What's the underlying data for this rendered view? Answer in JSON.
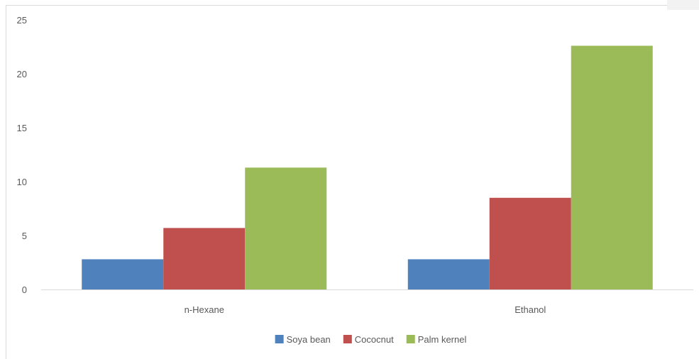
{
  "chart_data": {
    "type": "bar",
    "title": "",
    "xlabel": "",
    "ylabel": "",
    "categories": [
      "n-Hexane",
      "Ethanol"
    ],
    "series": [
      {
        "name": "Soya bean",
        "values": [
          2.8,
          2.8
        ],
        "color": "#4f81bd"
      },
      {
        "name": "Cococnut",
        "values": [
          5.7,
          8.5
        ],
        "color": "#c0504d"
      },
      {
        "name": "Palm kernel",
        "values": [
          11.3,
          22.6
        ],
        "color": "#9bbb59"
      }
    ],
    "ylim": [
      0,
      25
    ],
    "yticks": [
      "0",
      "5",
      "10",
      "15",
      "20",
      "25"
    ],
    "grid": false,
    "legend_position": "bottom"
  }
}
